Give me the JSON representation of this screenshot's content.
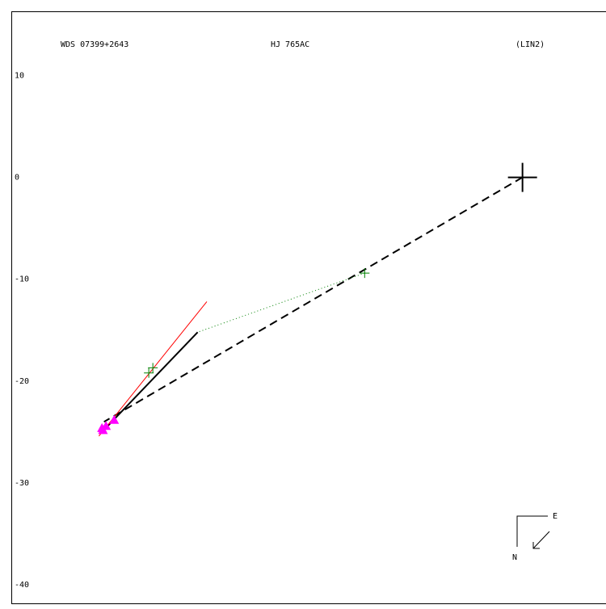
{
  "chart_data": {
    "type": "scatter",
    "title": "WDS 07399+2643",
    "subtitle": "HJ  765AC",
    "annotation": "(LIN2)",
    "compass": {
      "east": "E",
      "north": "N"
    },
    "xlim": [
      -50.2,
      8.2
    ],
    "ylim": [
      -41.9,
      16.3
    ],
    "yticks": [
      10,
      0,
      -10,
      -20,
      -30,
      -40
    ],
    "series": [
      {
        "style": "big-cross",
        "color": "#000000",
        "x": [
          0
        ],
        "values": [
          0
        ]
      },
      {
        "style": "line-dashed",
        "color": "#000000",
        "x": [
          0,
          -41.1
        ],
        "values": [
          0,
          -24.0
        ]
      },
      {
        "style": "line-dotted",
        "color": "#008000",
        "x": [
          -15.5,
          -31.9
        ],
        "values": [
          -9.4,
          -15.2
        ]
      },
      {
        "style": "cross",
        "color": "#008000",
        "x": [
          -15.5
        ],
        "values": [
          -9.4
        ]
      },
      {
        "style": "line-thick",
        "color": "#000000",
        "x": [
          -31.9,
          -41.1
        ],
        "values": [
          -15.2,
          -24.8
        ]
      },
      {
        "style": "line",
        "color": "#ff0000",
        "x": [
          -31.0,
          -41.6
        ],
        "values": [
          -12.2,
          -25.4
        ]
      },
      {
        "style": "cross",
        "color": "#008000",
        "x": [
          -36.7,
          -36.3
        ],
        "values": [
          -19.2,
          -18.7
        ]
      },
      {
        "style": "triangle",
        "color": "#ff00ff",
        "x": [
          -41.3,
          -40.9,
          -40.1,
          -41.2
        ],
        "values": [
          -24.6,
          -24.4,
          -23.8,
          -24.8
        ]
      }
    ]
  }
}
